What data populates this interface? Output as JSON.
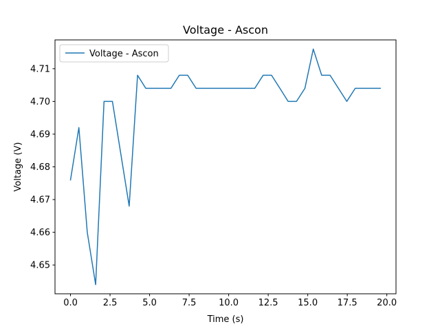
{
  "chart_data": {
    "type": "line",
    "title": "Voltage - Ascon",
    "xlabel": "Time (s)",
    "ylabel": "Voltage (V)",
    "xlim": [
      -0.98,
      20.58
    ],
    "ylim": [
      4.6412,
      4.7188
    ],
    "x_ticks": [
      0.0,
      2.5,
      5.0,
      7.5,
      10.0,
      12.5,
      15.0,
      17.5,
      20.0
    ],
    "x_tick_labels": [
      "0.0",
      "2.5",
      "5.0",
      "7.5",
      "10.0",
      "12.5",
      "15.0",
      "17.5",
      "20.0"
    ],
    "y_ticks": [
      4.65,
      4.66,
      4.67,
      4.68,
      4.69,
      4.7,
      4.71
    ],
    "y_tick_labels": [
      "4.65",
      "4.66",
      "4.67",
      "4.68",
      "4.69",
      "4.70",
      "4.71"
    ],
    "grid": false,
    "legend": {
      "position": "top-left"
    },
    "series": [
      {
        "name": "Voltage - Ascon",
        "color": "#1f77b4",
        "x": [
          0.0,
          0.53,
          1.06,
          1.59,
          2.12,
          2.65,
          3.18,
          3.71,
          4.24,
          4.76,
          5.29,
          5.82,
          6.35,
          6.88,
          7.41,
          7.94,
          8.47,
          9.0,
          9.53,
          10.06,
          10.59,
          11.12,
          11.65,
          12.18,
          12.71,
          13.24,
          13.76,
          14.29,
          14.82,
          15.35,
          15.88,
          16.41,
          16.94,
          17.47,
          18.0,
          18.53,
          19.06,
          19.59
        ],
        "y": [
          4.676,
          4.692,
          4.66,
          4.644,
          4.7,
          4.7,
          4.684,
          4.668,
          4.708,
          4.704,
          4.704,
          4.704,
          4.704,
          4.708,
          4.708,
          4.704,
          4.704,
          4.704,
          4.704,
          4.704,
          4.704,
          4.704,
          4.704,
          4.708,
          4.708,
          4.704,
          4.7,
          4.7,
          4.704,
          4.716,
          4.708,
          4.708,
          4.704,
          4.7,
          4.704,
          4.704,
          4.704,
          4.704
        ]
      }
    ]
  }
}
